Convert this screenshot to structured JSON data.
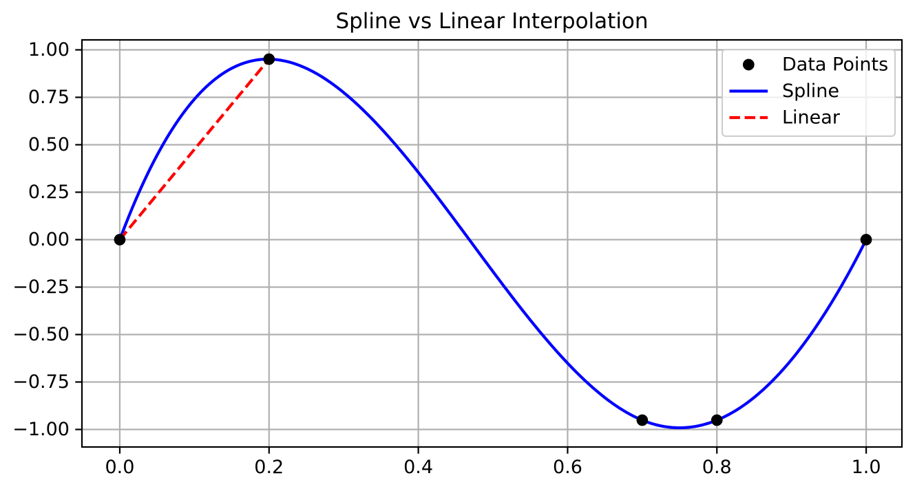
{
  "chart_data": {
    "type": "line",
    "title": "Spline vs Linear Interpolation",
    "xlabel": "",
    "ylabel": "",
    "xlim": [
      -0.0507,
      1.0479
    ],
    "ylim": [
      -1.0924,
      1.0525
    ],
    "grid": true,
    "x_ticks": {
      "values": [
        0.0,
        0.2,
        0.4,
        0.6,
        0.8,
        1.0
      ],
      "labels": [
        "0.0",
        "0.2",
        "0.4",
        "0.6",
        "0.8",
        "1.0"
      ]
    },
    "y_ticks": {
      "values": [
        1.0,
        0.75,
        0.5,
        0.25,
        0.0,
        -0.25,
        -0.5,
        -0.75,
        -1.0
      ],
      "labels": [
        "1.00",
        "0.75",
        "0.50",
        "0.25",
        "0.00",
        "−0.25",
        "−0.50",
        "−0.75",
        "−1.00"
      ]
    },
    "series": [
      {
        "name": "Data Points",
        "type": "scatter",
        "marker": "circle",
        "color": "#000000",
        "x": [
          0.0,
          0.2,
          0.7,
          0.8,
          1.0
        ],
        "y": [
          0.0,
          0.951,
          -0.951,
          -0.951,
          0.0
        ]
      },
      {
        "name": "Spline",
        "type": "cubic_spline_not_a_knot",
        "line_style": "solid",
        "color": "#0000ff",
        "knots_x": [
          0.0,
          0.2,
          0.7,
          0.8,
          1.0
        ],
        "knots_y": [
          0.0,
          0.951,
          -0.951,
          -0.951,
          0.0
        ]
      },
      {
        "name": "Linear",
        "type": "line",
        "line_style": "dashed",
        "color": "#ff0000",
        "x": [
          0.0,
          0.2
        ],
        "y": [
          0.0,
          0.951
        ]
      }
    ],
    "legend": {
      "position": "upper right",
      "entries": [
        {
          "label": "Data Points",
          "swatch": "circle-marker",
          "color": "#000000"
        },
        {
          "label": "Spline",
          "swatch": "solid-line",
          "color": "#0000ff"
        },
        {
          "label": "Linear",
          "swatch": "dashed-line",
          "color": "#ff0000"
        }
      ]
    }
  },
  "colors": {
    "background": "#ffffff",
    "grid": "#b0b0b0",
    "axes": "#000000",
    "tick_labels": "#000000",
    "legend_edge": "#cccccc",
    "legend_fill": "#ffffff",
    "legend_fill_alpha": 0.8
  }
}
